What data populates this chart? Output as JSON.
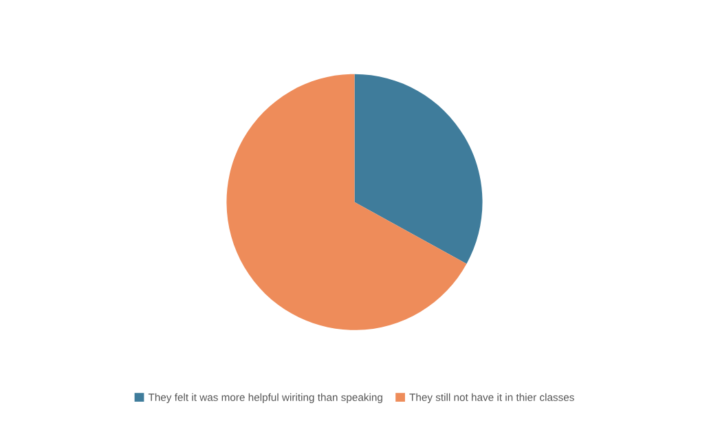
{
  "chart_data": {
    "type": "pie",
    "categories": [
      "They felt it was more helpful wiriting than speaking",
      "They still not have it in thier classes"
    ],
    "values": [
      33,
      67
    ],
    "colors": [
      "#3f7c9b",
      "#ee8c5a"
    ],
    "legend": "bottom"
  }
}
